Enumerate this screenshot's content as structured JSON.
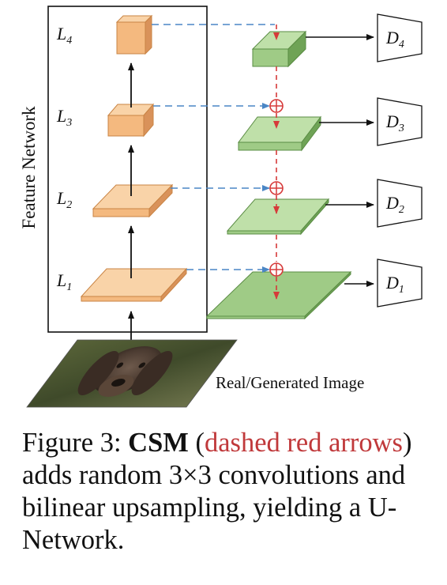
{
  "diagram": {
    "feature_network_label": "Feature Network",
    "levels": [
      {
        "main": "L",
        "sub": "4"
      },
      {
        "main": "L",
        "sub": "3"
      },
      {
        "main": "L",
        "sub": "2"
      },
      {
        "main": "L",
        "sub": "1"
      }
    ],
    "discriminators": [
      {
        "main": "D",
        "sub": "4"
      },
      {
        "main": "D",
        "sub": "3"
      },
      {
        "main": "D",
        "sub": "2"
      },
      {
        "main": "D",
        "sub": "1"
      }
    ],
    "input_label": "Real/Generated Image",
    "colors": {
      "feature_face": "#f4b97f",
      "feature_top": "#f9d3a8",
      "feature_side": "#d9925a",
      "csm_face": "#9fcb86",
      "csm_top": "#bfe0a9",
      "csm_side": "#6fa356",
      "blue_dashed": "#4a86c5",
      "red_dashed": "#d63a3a"
    }
  },
  "caption": {
    "prefix": "Figure 3: ",
    "bold": "CSM",
    "open_paren": " (",
    "red_text": "dashed red arrows",
    "rest": ") adds random 3×3 convolutions and bilinear upsampling, yielding a U-Network."
  }
}
